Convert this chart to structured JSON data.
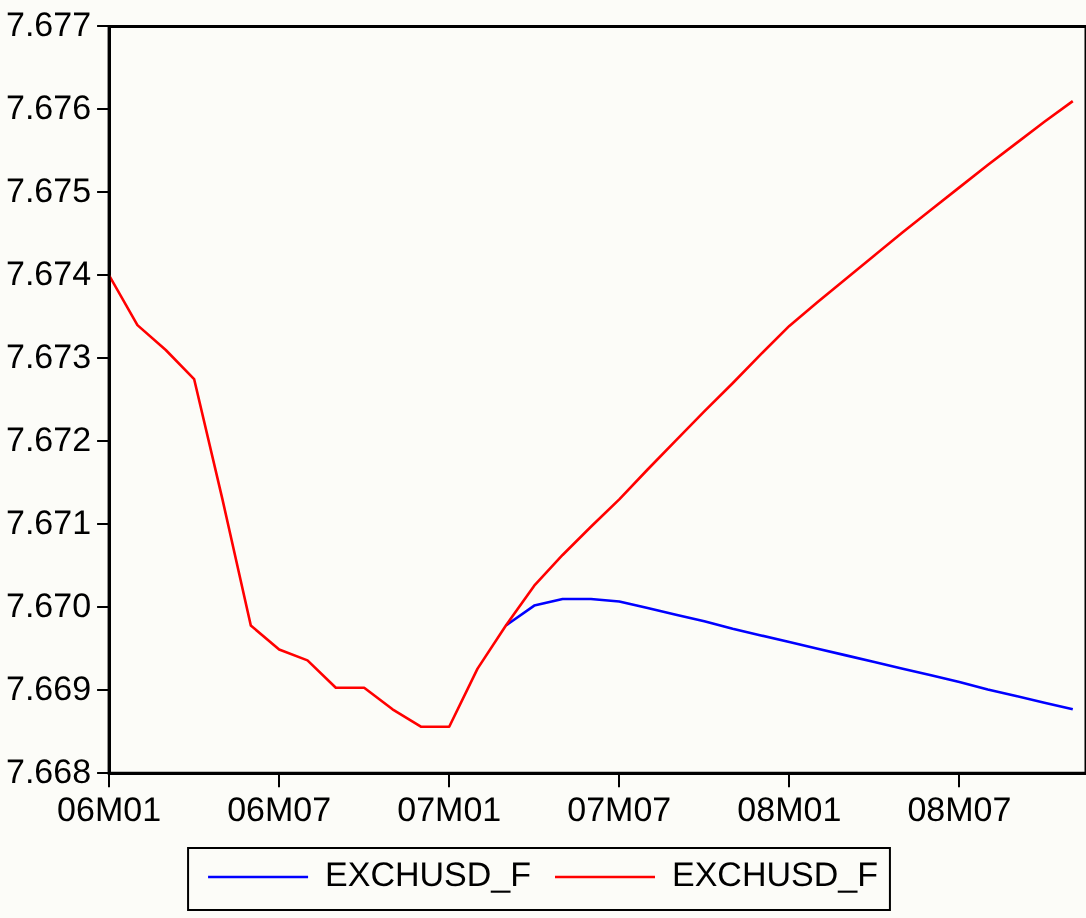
{
  "chart_data": {
    "type": "line",
    "x": [
      "2006-01",
      "2006-02",
      "2006-03",
      "2006-04",
      "2006-05",
      "2006-06",
      "2006-07",
      "2006-08",
      "2006-09",
      "2006-10",
      "2006-11",
      "2006-12",
      "2007-01",
      "2007-02",
      "2007-03",
      "2007-04",
      "2007-05",
      "2007-06",
      "2007-07",
      "2007-08",
      "2007-09",
      "2007-10",
      "2007-11",
      "2007-12",
      "2008-01",
      "2008-02",
      "2008-03",
      "2008-04",
      "2008-05",
      "2008-06",
      "2008-07",
      "2008-08",
      "2008-09",
      "2008-10",
      "2008-11"
    ],
    "series": [
      {
        "name": "EXCHUSD_F",
        "color": "#0000ff",
        "values": [
          null,
          null,
          null,
          null,
          null,
          null,
          null,
          null,
          null,
          null,
          null,
          null,
          null,
          null,
          7.66978,
          7.67002,
          7.6701,
          7.6701,
          7.67007,
          7.66999,
          7.66991,
          7.66983,
          7.66974,
          7.66966,
          7.66958,
          7.6695,
          7.66942,
          7.66934,
          7.66926,
          7.66918,
          7.6691,
          7.66901,
          7.66893,
          7.66885,
          7.66877
        ]
      },
      {
        "name": "EXCHUSD_F",
        "color": "#ff0000",
        "values": [
          7.674,
          7.6734,
          7.6731,
          7.67275,
          7.6713,
          7.66978,
          7.66949,
          7.66936,
          7.66903,
          7.66903,
          7.66877,
          7.66856,
          7.66856,
          7.66926,
          7.66978,
          7.67026,
          7.67063,
          7.67097,
          7.6713,
          7.67166,
          7.67201,
          7.67236,
          7.6727,
          7.67305,
          7.67339,
          7.67368,
          7.67396,
          7.67424,
          7.67452,
          7.67479,
          7.67506,
          7.67533,
          7.67559,
          7.67585,
          7.6761
        ]
      }
    ],
    "xlim": [
      "2006-01",
      "2008-11-15"
    ],
    "xticks": [
      {
        "value": "2006-01",
        "label": "06M01"
      },
      {
        "value": "2006-07",
        "label": "06M07"
      },
      {
        "value": "2007-01",
        "label": "07M01"
      },
      {
        "value": "2007-07",
        "label": "07M07"
      },
      {
        "value": "2008-01",
        "label": "08M01"
      },
      {
        "value": "2008-07",
        "label": "08M07"
      }
    ],
    "ylim": [
      7.668,
      7.677
    ],
    "yticks": [
      {
        "value": 7.668,
        "label": "7.668"
      },
      7.669,
      {
        "value": 7.67,
        "label": "7.670"
      },
      7.671,
      7.672,
      7.673,
      7.674,
      7.675,
      7.676,
      7.677
    ],
    "grid": false,
    "legend": "bottom",
    "marker": "none",
    "line_style": "solid"
  }
}
